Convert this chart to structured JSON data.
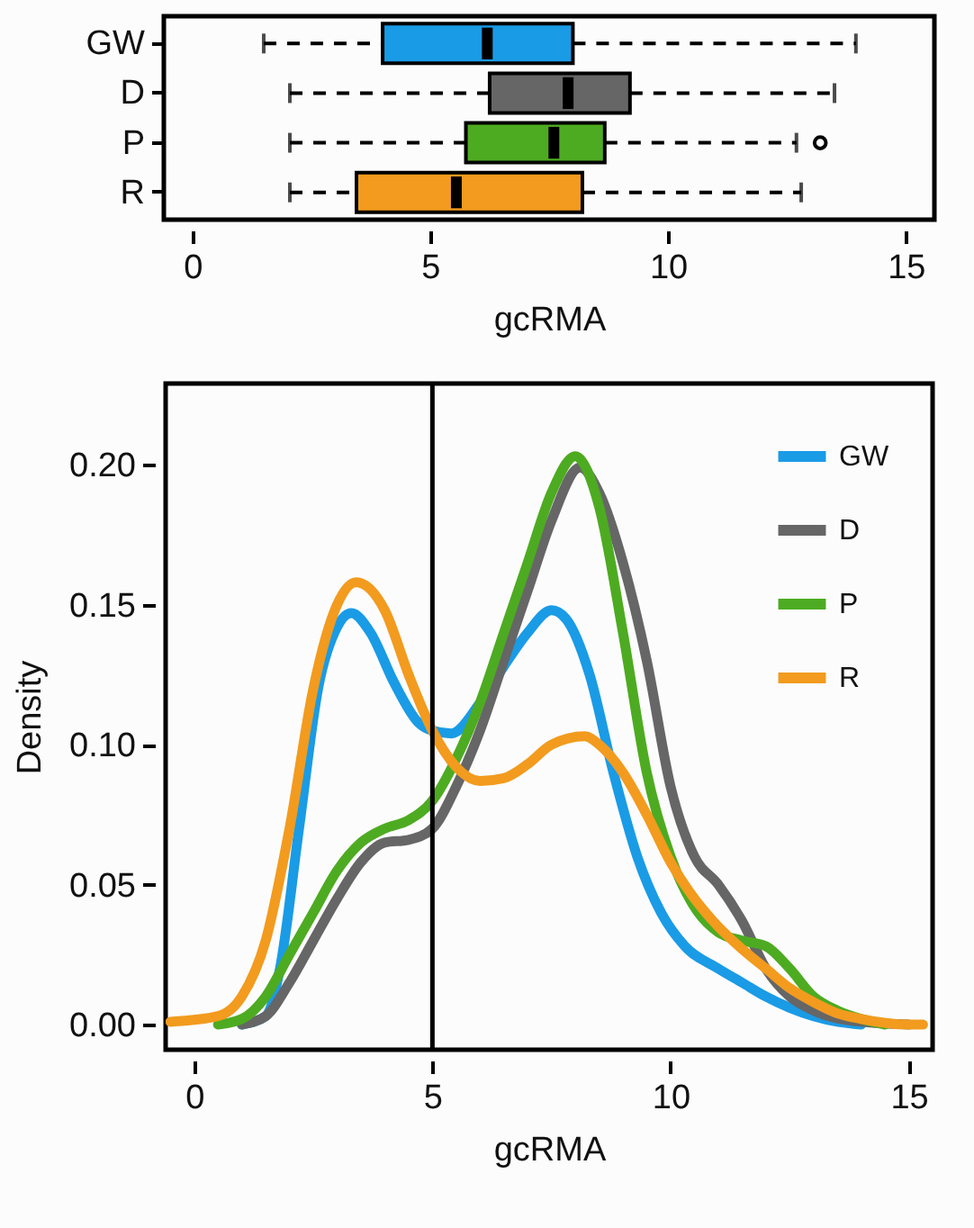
{
  "chart_data": [
    {
      "type": "box",
      "orientation": "horizontal",
      "categories": [
        "GW",
        "D",
        "P",
        "R"
      ],
      "xlabel": "gcRMA",
      "xlim": [
        -0.6,
        15.6
      ],
      "xticks": [
        0,
        5,
        10,
        15
      ],
      "colors": [
        "#1a9be6",
        "#666666",
        "#4dab21",
        "#f29b1e"
      ],
      "boxes": [
        {
          "low": 1.5,
          "q1": 4.0,
          "median": 6.2,
          "q3": 8.0,
          "high": 13.95
        },
        {
          "low": 2.05,
          "q1": 6.25,
          "median": 7.9,
          "q3": 9.2,
          "high": 13.5
        },
        {
          "low": 2.05,
          "q1": 5.75,
          "median": 7.6,
          "q3": 8.67,
          "high": 12.7,
          "outliers": [
            13.2
          ]
        },
        {
          "low": 2.05,
          "q1": 3.45,
          "median": 5.55,
          "q3": 8.2,
          "high": 12.8
        }
      ]
    },
    {
      "type": "line",
      "xlabel": "gcRMA",
      "ylabel": "Density",
      "xlim": [
        -0.6,
        15.5
      ],
      "xticks": [
        0,
        5,
        10,
        15
      ],
      "ylim": [
        -0.009,
        0.229
      ],
      "yticks": [
        {
          "value": 0,
          "label": "0.00"
        },
        {
          "value": 0.05,
          "label": "0.05"
        },
        {
          "value": 0.1,
          "label": "0.10"
        },
        {
          "value": 0.15,
          "label": "0.15"
        },
        {
          "value": 0.2,
          "label": "0.20"
        }
      ],
      "legend": "top right",
      "ref_lines": [
        {
          "axis": "x",
          "value": 5,
          "color": "#000000"
        }
      ],
      "series": [
        {
          "name": "GW",
          "color": "#1a9be6",
          "x": [
            1,
            1.5,
            1.8,
            2.2,
            2.6,
            3,
            3.3,
            3.7,
            4.2,
            4.7,
            5,
            5.4,
            6,
            6.5,
            7,
            7.5,
            7.8,
            8.3,
            8.8,
            9.3,
            9.8,
            10.3,
            11,
            11.5,
            12,
            12.5,
            13,
            13.5,
            14
          ],
          "values": [
            0,
            0.003,
            0.02,
            0.07,
            0.12,
            0.142,
            0.147,
            0.14,
            0.122,
            0.108,
            0.105,
            0.104,
            0.115,
            0.128,
            0.14,
            0.148,
            0.145,
            0.125,
            0.09,
            0.06,
            0.04,
            0.028,
            0.02,
            0.015,
            0.01,
            0.006,
            0.003,
            0.001,
            0
          ]
        },
        {
          "name": "D",
          "color": "#666666",
          "x": [
            1,
            1.5,
            2,
            2.5,
            3,
            3.5,
            4,
            4.5,
            5,
            5.5,
            6,
            6.5,
            7,
            7.5,
            8.1,
            8.5,
            9,
            9.5,
            10,
            10.5,
            11,
            11.5,
            12,
            12.5,
            13,
            14,
            15
          ],
          "values": [
            0,
            0.003,
            0.015,
            0.03,
            0.045,
            0.058,
            0.065,
            0.066,
            0.07,
            0.085,
            0.105,
            0.13,
            0.155,
            0.18,
            0.199,
            0.19,
            0.165,
            0.13,
            0.085,
            0.06,
            0.05,
            0.037,
            0.02,
            0.01,
            0.005,
            0.001,
            0
          ]
        },
        {
          "name": "P",
          "color": "#4dab21",
          "x": [
            0.5,
            1,
            1.5,
            2,
            2.5,
            3,
            3.5,
            4,
            4.5,
            5,
            5.5,
            6,
            6.5,
            7,
            7.5,
            8,
            8.5,
            9,
            9.5,
            10,
            10.5,
            11,
            11.5,
            12,
            12.5,
            13,
            13.5,
            14,
            14.5
          ],
          "values": [
            0,
            0.002,
            0.01,
            0.025,
            0.04,
            0.055,
            0.065,
            0.07,
            0.073,
            0.08,
            0.095,
            0.115,
            0.14,
            0.165,
            0.19,
            0.203,
            0.185,
            0.14,
            0.09,
            0.06,
            0.042,
            0.033,
            0.03,
            0.028,
            0.02,
            0.01,
            0.005,
            0.002,
            0
          ]
        },
        {
          "name": "R",
          "color": "#f29b1e",
          "x": [
            -0.5,
            0.5,
            1,
            1.5,
            2,
            2.5,
            3,
            3.4,
            4,
            4.5,
            5,
            5.5,
            6,
            6.5,
            7,
            7.5,
            8.2,
            8.5,
            9,
            9.5,
            10,
            10.5,
            11,
            11.5,
            12,
            12.5,
            13,
            13.5,
            14,
            15,
            15.3
          ],
          "values": [
            0.001,
            0.003,
            0.01,
            0.03,
            0.07,
            0.12,
            0.15,
            0.158,
            0.148,
            0.125,
            0.105,
            0.092,
            0.087,
            0.088,
            0.093,
            0.1,
            0.103,
            0.1,
            0.09,
            0.075,
            0.058,
            0.045,
            0.035,
            0.027,
            0.02,
            0.013,
            0.008,
            0.004,
            0.002,
            0,
            0
          ]
        }
      ]
    }
  ]
}
